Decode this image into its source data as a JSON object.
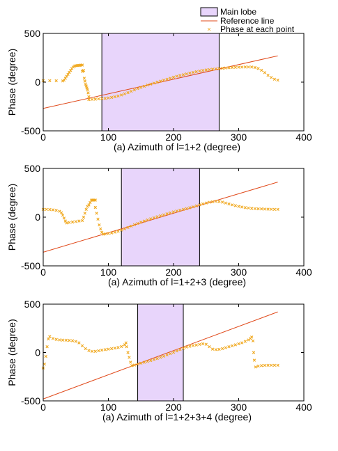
{
  "legend": {
    "position": "top-right",
    "entries": [
      {
        "label": "Main lobe",
        "kind": "box"
      },
      {
        "label": "Reference line",
        "kind": "line"
      },
      {
        "label": "Phase at each point",
        "kind": "marker"
      }
    ]
  },
  "colors": {
    "lobe_fill": "#e8d5fb",
    "lobe_border": "#000000",
    "reference_line": "#e0491a",
    "points": "#f0a81e",
    "axes": "#000000"
  },
  "chart_data": [
    {
      "type": "scatter",
      "title": "",
      "xlabel": "(a) Azimuth of l=1+2 (degree)",
      "ylabel": "Phase (degree)",
      "xlim": [
        0,
        400
      ],
      "ylim": [
        -500,
        500
      ],
      "xticks": [
        0,
        100,
        200,
        300,
        400
      ],
      "yticks": [
        -500,
        0,
        500
      ],
      "grid": false,
      "main_lobe": [
        90,
        270
      ],
      "reference_line": {
        "x": [
          0,
          360
        ],
        "y": [
          -270,
          270
        ]
      },
      "series": [
        {
          "points": [
            [
              0,
              15
            ],
            [
              10,
              15
            ],
            [
              20,
              14
            ],
            [
              30,
              12
            ],
            [
              32,
              20
            ],
            [
              34,
              40
            ],
            [
              36,
              60
            ],
            [
              38,
              80
            ],
            [
              40,
              100
            ],
            [
              42,
              120
            ],
            [
              44,
              140
            ],
            [
              46,
              155
            ],
            [
              48,
              165
            ],
            [
              50,
              168
            ],
            [
              52,
              170
            ],
            [
              54,
              172
            ],
            [
              56,
              172
            ],
            [
              58,
              175
            ],
            [
              60,
              175
            ],
            [
              60,
              110
            ],
            [
              61,
              115
            ],
            [
              62,
              120
            ],
            [
              63,
              40
            ],
            [
              64,
              10
            ],
            [
              65,
              -20
            ],
            [
              66,
              -40
            ],
            [
              67,
              -60
            ],
            [
              68,
              -80
            ],
            [
              69,
              -110
            ],
            [
              70,
              -150
            ],
            [
              70,
              -180
            ],
            [
              75,
              -177
            ],
            [
              80,
              -175
            ],
            [
              85,
              -172
            ],
            [
              90,
              -170
            ],
            [
              95,
              -167
            ],
            [
              100,
              -162
            ],
            [
              105,
              -157
            ],
            [
              110,
              -150
            ],
            [
              115,
              -142
            ],
            [
              120,
              -132
            ],
            [
              125,
              -120
            ],
            [
              130,
              -108
            ],
            [
              135,
              -94
            ],
            [
              140,
              -80
            ],
            [
              145,
              -66
            ],
            [
              150,
              -54
            ],
            [
              155,
              -42
            ],
            [
              160,
              -30
            ],
            [
              165,
              -20
            ],
            [
              170,
              -10
            ],
            [
              175,
              0
            ],
            [
              180,
              10
            ],
            [
              185,
              20
            ],
            [
              190,
              30
            ],
            [
              195,
              40
            ],
            [
              200,
              50
            ],
            [
              205,
              60
            ],
            [
              210,
              68
            ],
            [
              215,
              76
            ],
            [
              220,
              84
            ],
            [
              225,
              92
            ],
            [
              230,
              100
            ],
            [
              235,
              107
            ],
            [
              240,
              114
            ],
            [
              245,
              120
            ],
            [
              250,
              125
            ],
            [
              255,
              129
            ],
            [
              260,
              133
            ],
            [
              265,
              136
            ],
            [
              270,
              139
            ],
            [
              275,
              142
            ],
            [
              280,
              145
            ],
            [
              285,
              148
            ],
            [
              290,
              150
            ],
            [
              295,
              152
            ],
            [
              300,
              153
            ],
            [
              305,
              154
            ],
            [
              310,
              155
            ],
            [
              315,
              155
            ],
            [
              320,
              155
            ],
            [
              325,
              150
            ],
            [
              330,
              140
            ],
            [
              335,
              122
            ],
            [
              340,
              98
            ],
            [
              345,
              70
            ],
            [
              350,
              48
            ],
            [
              355,
              30
            ],
            [
              360,
              20
            ]
          ]
        }
      ]
    },
    {
      "type": "scatter",
      "title": "",
      "xlabel": "(a) Azimuth of l=1+2+3 (degree)",
      "ylabel": "Phase (degree)",
      "xlim": [
        0,
        400
      ],
      "ylim": [
        -500,
        500
      ],
      "xticks": [
        0,
        100,
        200,
        300,
        400
      ],
      "yticks": [
        -500,
        0,
        500
      ],
      "grid": false,
      "main_lobe": [
        120,
        240
      ],
      "reference_line": {
        "x": [
          0,
          360
        ],
        "y": [
          -360,
          360
        ]
      },
      "series": [
        {
          "points": [
            [
              0,
              80
            ],
            [
              5,
              80
            ],
            [
              10,
              78
            ],
            [
              15,
              75
            ],
            [
              20,
              70
            ],
            [
              25,
              60
            ],
            [
              28,
              45
            ],
            [
              30,
              20
            ],
            [
              32,
              -10
            ],
            [
              34,
              -40
            ],
            [
              36,
              -60
            ],
            [
              40,
              -55
            ],
            [
              45,
              -50
            ],
            [
              50,
              -45
            ],
            [
              55,
              -40
            ],
            [
              60,
              -35
            ],
            [
              62,
              0
            ],
            [
              64,
              40
            ],
            [
              66,
              80
            ],
            [
              68,
              110
            ],
            [
              70,
              125
            ],
            [
              72,
              150
            ],
            [
              74,
              175
            ],
            [
              76,
              175
            ],
            [
              78,
              175
            ],
            [
              80,
              175
            ],
            [
              80,
              100
            ],
            [
              82,
              40
            ],
            [
              84,
              -20
            ],
            [
              86,
              -80
            ],
            [
              88,
              -120
            ],
            [
              90,
              -155
            ],
            [
              92,
              -175
            ],
            [
              95,
              -172
            ],
            [
              100,
              -168
            ],
            [
              105,
              -162
            ],
            [
              110,
              -155
            ],
            [
              115,
              -145
            ],
            [
              120,
              -133
            ],
            [
              125,
              -120
            ],
            [
              130,
              -106
            ],
            [
              135,
              -92
            ],
            [
              140,
              -78
            ],
            [
              145,
              -65
            ],
            [
              150,
              -52
            ],
            [
              155,
              -40
            ],
            [
              160,
              -28
            ],
            [
              165,
              -17
            ],
            [
              170,
              -6
            ],
            [
              175,
              4
            ],
            [
              180,
              14
            ],
            [
              185,
              24
            ],
            [
              190,
              34
            ],
            [
              195,
              44
            ],
            [
              200,
              54
            ],
            [
              205,
              63
            ],
            [
              210,
              72
            ],
            [
              215,
              80
            ],
            [
              220,
              88
            ],
            [
              225,
              97
            ],
            [
              230,
              106
            ],
            [
              235,
              116
            ],
            [
              240,
              126
            ],
            [
              245,
              136
            ],
            [
              250,
              145
            ],
            [
              255,
              153
            ],
            [
              260,
              158
            ],
            [
              265,
              162
            ],
            [
              270,
              160
            ],
            [
              275,
              154
            ],
            [
              280,
              145
            ],
            [
              285,
              135
            ],
            [
              290,
              126
            ],
            [
              295,
              118
            ],
            [
              300,
              110
            ],
            [
              305,
              104
            ],
            [
              310,
              98
            ],
            [
              315,
              94
            ],
            [
              320,
              90
            ],
            [
              325,
              87
            ],
            [
              330,
              85
            ],
            [
              335,
              84
            ],
            [
              340,
              83
            ],
            [
              345,
              82
            ],
            [
              350,
              81
            ],
            [
              355,
              80
            ],
            [
              360,
              80
            ]
          ]
        }
      ]
    },
    {
      "type": "scatter",
      "title": "",
      "xlabel": "(a) Azimuth of l=1+2+3+4 (degree)",
      "ylabel": "Phase (degree)",
      "xlim": [
        0,
        400
      ],
      "ylim": [
        -500,
        500
      ],
      "xticks": [
        0,
        100,
        200,
        300,
        400
      ],
      "yticks": [
        -500,
        0,
        500
      ],
      "grid": false,
      "main_lobe": [
        145,
        215
      ],
      "reference_line": {
        "x": [
          0,
          360
        ],
        "y": [
          -480,
          420
        ]
      },
      "series": [
        {
          "points": [
            [
              0,
              -160
            ],
            [
              2,
              -120
            ],
            [
              4,
              -40
            ],
            [
              6,
              60
            ],
            [
              8,
              140
            ],
            [
              10,
              165
            ],
            [
              15,
              145
            ],
            [
              20,
              135
            ],
            [
              25,
              130
            ],
            [
              30,
              128
            ],
            [
              35,
              127
            ],
            [
              40,
              125
            ],
            [
              45,
              122
            ],
            [
              50,
              115
            ],
            [
              55,
              100
            ],
            [
              60,
              70
            ],
            [
              65,
              40
            ],
            [
              70,
              20
            ],
            [
              75,
              12
            ],
            [
              80,
              12
            ],
            [
              85,
              18
            ],
            [
              90,
              25
            ],
            [
              95,
              30
            ],
            [
              100,
              35
            ],
            [
              105,
              40
            ],
            [
              110,
              45
            ],
            [
              115,
              52
            ],
            [
              120,
              62
            ],
            [
              125,
              80
            ],
            [
              127,
              100
            ],
            [
              128,
              60
            ],
            [
              130,
              0
            ],
            [
              132,
              -50
            ],
            [
              134,
              -100
            ],
            [
              136,
              -135
            ],
            [
              140,
              -130
            ],
            [
              145,
              -120
            ],
            [
              150,
              -110
            ],
            [
              155,
              -101
            ],
            [
              160,
              -92
            ],
            [
              165,
              -83
            ],
            [
              170,
              -73
            ],
            [
              175,
              -62
            ],
            [
              180,
              -50
            ],
            [
              185,
              -38
            ],
            [
              190,
              -25
            ],
            [
              195,
              -12
            ],
            [
              200,
              2
            ],
            [
              205,
              16
            ],
            [
              210,
              30
            ],
            [
              215,
              44
            ],
            [
              220,
              56
            ],
            [
              225,
              64
            ],
            [
              230,
              72
            ],
            [
              235,
              78
            ],
            [
              240,
              84
            ],
            [
              245,
              90
            ],
            [
              250,
              85
            ],
            [
              255,
              60
            ],
            [
              260,
              35
            ],
            [
              265,
              30
            ],
            [
              270,
              33
            ],
            [
              275,
              40
            ],
            [
              280,
              50
            ],
            [
              285,
              60
            ],
            [
              290,
              70
            ],
            [
              295,
              80
            ],
            [
              300,
              90
            ],
            [
              305,
              100
            ],
            [
              310,
              115
            ],
            [
              315,
              130
            ],
            [
              318,
              145
            ],
            [
              320,
              160
            ],
            [
              322,
              120
            ],
            [
              323,
              0
            ],
            [
              324,
              -80
            ],
            [
              326,
              -150
            ],
            [
              330,
              -140
            ],
            [
              335,
              -135
            ],
            [
              340,
              -133
            ],
            [
              345,
              -132
            ],
            [
              350,
              -132
            ],
            [
              355,
              -132
            ],
            [
              360,
              -132
            ]
          ]
        }
      ]
    }
  ]
}
